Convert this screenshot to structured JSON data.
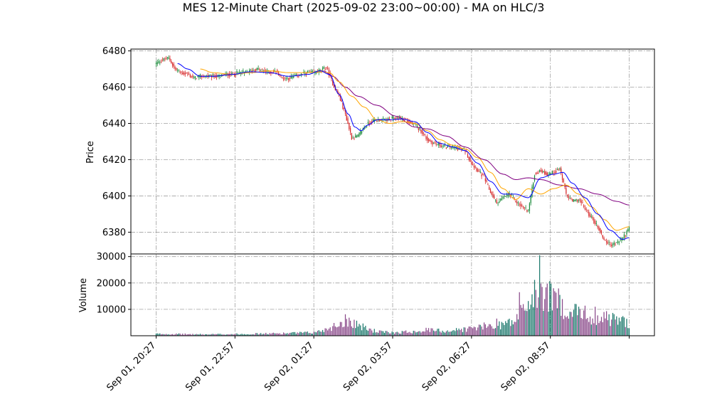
{
  "chart_data": {
    "type": "candlestick",
    "title": "MES 12-Minute Chart (2025-09-02 23:00~00:00) - MA on HLC/3",
    "price_panel": {
      "ylabel": "Price",
      "ylim": [
        6368,
        6481
      ],
      "yticks": [
        6380,
        6400,
        6420,
        6440,
        6460,
        6480
      ],
      "grid": true
    },
    "volume_panel": {
      "ylabel": "Volume",
      "ylim": [
        0,
        31000
      ],
      "yticks": [
        10000,
        20000,
        30000
      ],
      "yticklabels": [
        "10000",
        "20000",
        "30000"
      ],
      "grid": true
    },
    "x_axis": {
      "tick_labels": [
        "Sep 01, 20:27",
        "Sep 01, 22:57",
        "Sep 02, 01:27",
        "Sep 02, 03:57",
        "Sep 02, 06:27",
        "Sep 02, 08:57"
      ],
      "tick_positions": [
        0,
        12.5,
        25,
        37.5,
        50,
        62.5
      ],
      "range": [
        -4,
        79
      ],
      "last_bar_index": 75
    },
    "colors": {
      "up": "#1a8a3a",
      "down": "#d62728",
      "ma_fast": "#0000ff",
      "ma_mid": "#ffa500",
      "ma_slow": "#800080",
      "volume_up": "#1f7a6e",
      "volume_down": "#8a4a8a"
    },
    "price_path": [
      [
        0,
        6473
      ],
      [
        1,
        6475
      ],
      [
        2,
        6476
      ],
      [
        3,
        6470
      ],
      [
        4,
        6468
      ],
      [
        5,
        6467
      ],
      [
        6,
        6465
      ],
      [
        7,
        6466
      ],
      [
        8,
        6466
      ],
      [
        9,
        6466
      ],
      [
        10,
        6466
      ],
      [
        11,
        6467
      ],
      [
        12,
        6467
      ],
      [
        13,
        6468
      ],
      [
        14,
        6468
      ],
      [
        15,
        6469
      ],
      [
        16,
        6470
      ],
      [
        17,
        6469
      ],
      [
        18,
        6468
      ],
      [
        19,
        6469
      ],
      [
        20,
        6465
      ],
      [
        21,
        6465
      ],
      [
        22,
        6466
      ],
      [
        23,
        6467
      ],
      [
        24,
        6468
      ],
      [
        25,
        6468
      ],
      [
        26,
        6469
      ],
      [
        27,
        6471
      ],
      [
        28,
        6462
      ],
      [
        29,
        6455
      ],
      [
        30,
        6445
      ],
      [
        31,
        6432
      ],
      [
        32,
        6433
      ],
      [
        33,
        6438
      ],
      [
        34,
        6441
      ],
      [
        35,
        6442
      ],
      [
        36,
        6442
      ],
      [
        37,
        6442
      ],
      [
        38,
        6443
      ],
      [
        39,
        6443
      ],
      [
        40,
        6441
      ],
      [
        41,
        6439
      ],
      [
        42,
        6436
      ],
      [
        43,
        6431
      ],
      [
        44,
        6429
      ],
      [
        45,
        6428
      ],
      [
        46,
        6427
      ],
      [
        47,
        6427
      ],
      [
        48,
        6426
      ],
      [
        49,
        6425
      ],
      [
        50,
        6418
      ],
      [
        51,
        6414
      ],
      [
        52,
        6410
      ],
      [
        53,
        6402
      ],
      [
        54,
        6396
      ],
      [
        55,
        6399
      ],
      [
        56,
        6401
      ],
      [
        57,
        6397
      ],
      [
        58,
        6394
      ],
      [
        59,
        6392
      ],
      [
        60,
        6412
      ],
      [
        61,
        6414
      ],
      [
        62,
        6412
      ],
      [
        63,
        6413
      ],
      [
        64,
        6415
      ],
      [
        65,
        6401
      ],
      [
        66,
        6397
      ],
      [
        67,
        6398
      ],
      [
        68,
        6393
      ],
      [
        69,
        6388
      ],
      [
        70,
        6383
      ],
      [
        71,
        6376
      ],
      [
        72,
        6373
      ],
      [
        73,
        6374
      ],
      [
        74,
        6377
      ],
      [
        75,
        6382
      ]
    ],
    "ma_fast": [
      [
        3.4,
        6473
      ],
      [
        5,
        6470
      ],
      [
        7,
        6466
      ],
      [
        9,
        6466
      ],
      [
        12,
        6467
      ],
      [
        15,
        6468.5
      ],
      [
        18,
        6468
      ],
      [
        21,
        6466
      ],
      [
        24,
        6467
      ],
      [
        26,
        6469
      ],
      [
        27.5,
        6467
      ],
      [
        29,
        6456
      ],
      [
        30.5,
        6445
      ],
      [
        31.5,
        6438
      ],
      [
        32.5,
        6436
      ],
      [
        33.5,
        6439
      ],
      [
        35,
        6442
      ],
      [
        37,
        6442
      ],
      [
        39,
        6442.5
      ],
      [
        41,
        6441
      ],
      [
        43,
        6435
      ],
      [
        45,
        6429
      ],
      [
        47,
        6427
      ],
      [
        49,
        6425
      ],
      [
        51,
        6418
      ],
      [
        53,
        6408
      ],
      [
        55,
        6401
      ],
      [
        57,
        6401
      ],
      [
        59,
        6399
      ],
      [
        61,
        6410
      ],
      [
        63,
        6412
      ],
      [
        64.5,
        6413
      ],
      [
        66,
        6407
      ],
      [
        68,
        6399
      ],
      [
        70,
        6390
      ],
      [
        72,
        6381
      ],
      [
        74,
        6376
      ],
      [
        75,
        6377
      ]
    ],
    "ma_mid": [
      [
        7,
        6470
      ],
      [
        9,
        6468
      ],
      [
        12,
        6467
      ],
      [
        15,
        6468
      ],
      [
        18,
        6469
      ],
      [
        21,
        6468
      ],
      [
        24,
        6468
      ],
      [
        26,
        6468.5
      ],
      [
        27.5,
        6468
      ],
      [
        29,
        6463
      ],
      [
        31,
        6455
      ],
      [
        33,
        6449
      ],
      [
        35,
        6442
      ],
      [
        37,
        6440
      ],
      [
        39,
        6441
      ],
      [
        41,
        6440
      ],
      [
        43,
        6436
      ],
      [
        45,
        6431
      ],
      [
        47,
        6428
      ],
      [
        49,
        6426
      ],
      [
        51,
        6421
      ],
      [
        53,
        6413
      ],
      [
        55,
        6404
      ],
      [
        57,
        6398
      ],
      [
        59,
        6404
      ],
      [
        61,
        6401
      ],
      [
        63,
        6404
      ],
      [
        65,
        6406
      ],
      [
        67,
        6401
      ],
      [
        69,
        6394
      ],
      [
        71,
        6387
      ],
      [
        73,
        6381
      ],
      [
        75,
        6383
      ]
    ],
    "ma_slow": [
      [
        26.5,
        6469
      ],
      [
        28,
        6466
      ],
      [
        30,
        6460
      ],
      [
        32,
        6455
      ],
      [
        35,
        6450
      ],
      [
        38,
        6444
      ],
      [
        41,
        6438
      ],
      [
        43,
        6437
      ],
      [
        46,
        6433
      ],
      [
        49,
        6427
      ],
      [
        52,
        6420
      ],
      [
        55,
        6412
      ],
      [
        57,
        6409
      ],
      [
        59,
        6410
      ],
      [
        61,
        6409
      ],
      [
        64,
        6406
      ],
      [
        67,
        6404
      ],
      [
        70,
        6401
      ],
      [
        73,
        6397
      ],
      [
        75,
        6395
      ]
    ],
    "volume_profile": [
      [
        0,
        700
      ],
      [
        8,
        500
      ],
      [
        18,
        800
      ],
      [
        25,
        1200
      ],
      [
        27,
        2500
      ],
      [
        29,
        4500
      ],
      [
        30,
        6000
      ],
      [
        31,
        5500
      ],
      [
        33,
        3000
      ],
      [
        35,
        1600
      ],
      [
        37,
        1200
      ],
      [
        40,
        1500
      ],
      [
        43,
        2200
      ],
      [
        46,
        1800
      ],
      [
        49,
        2500
      ],
      [
        52,
        3500
      ],
      [
        55,
        4500
      ],
      [
        57,
        5500
      ],
      [
        58,
        10000
      ],
      [
        59,
        12000
      ],
      [
        60,
        15000
      ],
      [
        62,
        16000
      ],
      [
        64,
        12000
      ],
      [
        66,
        9000
      ],
      [
        68,
        8000
      ],
      [
        70,
        7000
      ],
      [
        72,
        6500
      ],
      [
        75,
        5000
      ]
    ],
    "volume_spikes": [
      [
        54,
        6500
      ],
      [
        57.6,
        16500
      ],
      [
        60.8,
        30500
      ],
      [
        61.2,
        18500
      ],
      [
        63,
        18000
      ],
      [
        66.6,
        12000
      ],
      [
        69.6,
        11000
      ],
      [
        71,
        9000
      ]
    ]
  }
}
